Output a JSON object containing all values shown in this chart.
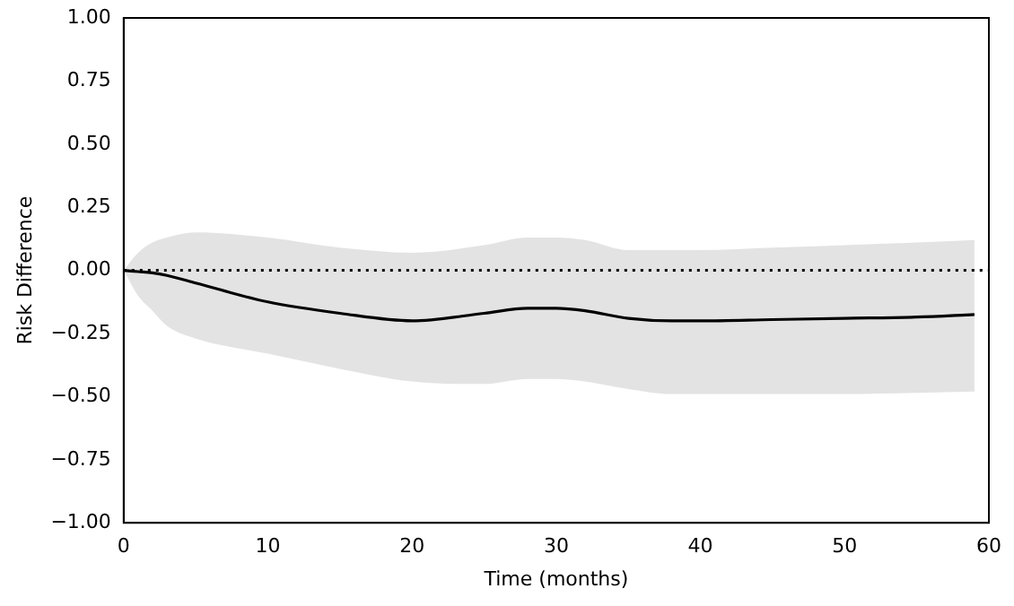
{
  "chart_data": {
    "type": "line",
    "xlabel": "Time (months)",
    "ylabel": "Risk Difference",
    "x": [
      0,
      1,
      2,
      3,
      5,
      10,
      15,
      20,
      25,
      28,
      30,
      32,
      35,
      38,
      40,
      45,
      50,
      55,
      59
    ],
    "series": [
      {
        "color": "#000000",
        "values": [
          0,
          -0.005,
          -0.01,
          -0.02,
          -0.05,
          -0.125,
          -0.17,
          -0.2,
          -0.17,
          -0.15,
          -0.15,
          -0.16,
          -0.19,
          -0.2,
          -0.2,
          -0.195,
          -0.19,
          -0.185,
          -0.175
        ],
        "lower": [
          0,
          -0.1,
          -0.16,
          -0.22,
          -0.27,
          -0.33,
          -0.39,
          -0.44,
          -0.45,
          -0.43,
          -0.43,
          -0.44,
          -0.47,
          -0.49,
          -0.49,
          -0.49,
          -0.49,
          -0.485,
          -0.48
        ],
        "upper": [
          0,
          0.07,
          0.11,
          0.13,
          0.15,
          0.13,
          0.09,
          0.07,
          0.1,
          0.13,
          0.13,
          0.12,
          0.08,
          0.08,
          0.08,
          0.09,
          0.1,
          0.11,
          0.12
        ]
      }
    ],
    "xlim": [
      0,
      60
    ],
    "xticks": [
      0,
      10,
      20,
      30,
      40,
      50,
      60
    ],
    "ylim": [
      -1,
      1
    ],
    "yticks": [
      {
        "value": -1,
        "label": "−1.00"
      },
      {
        "value": -0.75,
        "label": "−0.75"
      },
      {
        "value": -0.5,
        "label": "−0.50"
      },
      {
        "value": -0.25,
        "label": "−0.25"
      },
      {
        "value": 0,
        "label": "0.00"
      },
      {
        "value": 0.25,
        "label": "0.25"
      },
      {
        "value": 0.5,
        "label": "0.50"
      },
      {
        "value": 0.75,
        "label": "0.75"
      },
      {
        "value": 1,
        "label": "1.00"
      }
    ],
    "ref_lines": [
      {
        "axis": "y",
        "value": 0,
        "color": "#000000",
        "line_style": "dotted"
      }
    ],
    "grid": false,
    "legend": false,
    "marker": "none",
    "line_style": "solid"
  }
}
